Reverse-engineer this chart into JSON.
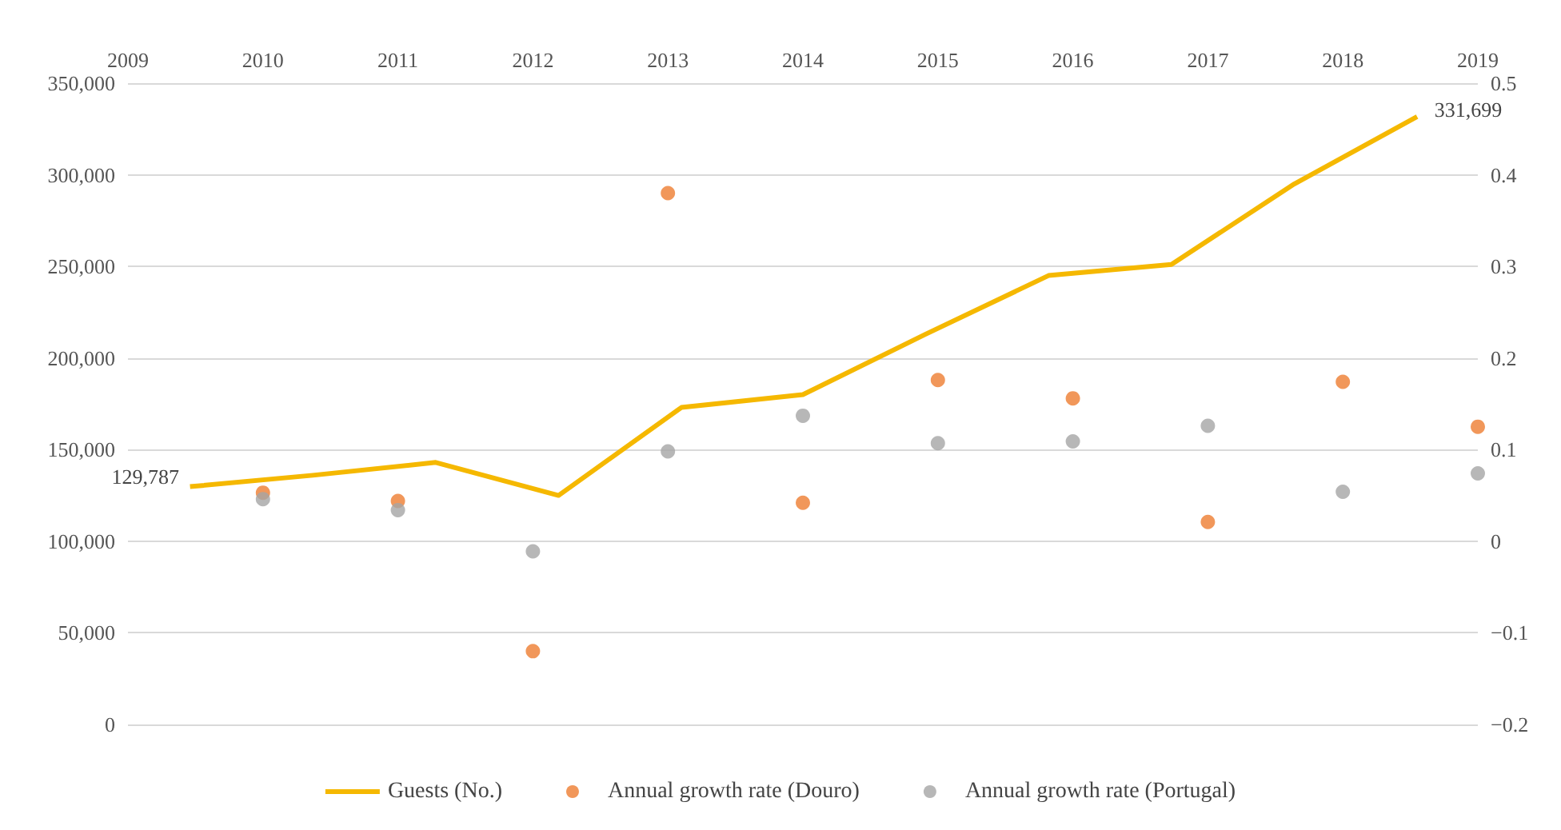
{
  "chart_data": {
    "type": "scatter",
    "xlim": [
      2009,
      2019
    ],
    "xticks": [
      2009,
      2010,
      2011,
      2012,
      2013,
      2014,
      2015,
      2016,
      2017,
      2018,
      2019
    ],
    "ylim": [
      0,
      350000
    ],
    "yticks": [
      {
        "value": 0,
        "label": "0"
      },
      {
        "value": 50000,
        "label": "50,000"
      },
      {
        "value": 100000,
        "label": "100,000"
      },
      {
        "value": 150000,
        "label": "150,000"
      },
      {
        "value": 200000,
        "label": "200,000"
      },
      {
        "value": 250000,
        "label": "250,000"
      },
      {
        "value": 300000,
        "label": "300,000"
      },
      {
        "value": 350000,
        "label": "350,000"
      }
    ],
    "y2lim": [
      -0.2,
      0.5
    ],
    "y2ticks": [
      {
        "value": -0.2,
        "label": "−0.2"
      },
      {
        "value": -0.1,
        "label": "−0.1"
      },
      0,
      0.1,
      0.2,
      0.3,
      0.4,
      0.5
    ],
    "grid": "y",
    "legend": "bottom",
    "series": [
      {
        "name": "Guests (No.)",
        "type": "line",
        "marker": "none",
        "color": "#f5b800",
        "x": [
          2009.46,
          2010.37,
          2011.28,
          2012.19,
          2013.1,
          2014.0,
          2014.91,
          2015.82,
          2016.73,
          2017.64,
          2018.55
        ],
        "values": [
          129787,
          136000,
          143000,
          125000,
          173000,
          180000,
          213000,
          245000,
          251000,
          295000,
          331699
        ],
        "value_labels": [
          "129,787",
          null,
          null,
          null,
          null,
          null,
          null,
          null,
          null,
          null,
          "331,699"
        ]
      },
      {
        "name": "Annual growth rate (Douro)",
        "marker": "circle",
        "axis": "y2",
        "color": "#ed7d31",
        "x": [
          2010,
          2011,
          2012,
          2013,
          2014,
          2015,
          2016,
          2017,
          2018,
          2019
        ],
        "values": [
          0.053,
          0.044,
          -0.12,
          0.38,
          0.042,
          0.176,
          0.156,
          0.021,
          0.174,
          0.125
        ]
      },
      {
        "name": "Annual growth rate (Portugal)",
        "marker": "circle",
        "axis": "y2",
        "color": "#a5a5a5",
        "x": [
          2010,
          2011,
          2012,
          2013,
          2014,
          2015,
          2016,
          2017,
          2018,
          2019
        ],
        "values": [
          0.046,
          0.034,
          -0.011,
          0.098,
          0.137,
          0.107,
          0.109,
          0.126,
          0.054,
          0.074
        ]
      }
    ]
  }
}
